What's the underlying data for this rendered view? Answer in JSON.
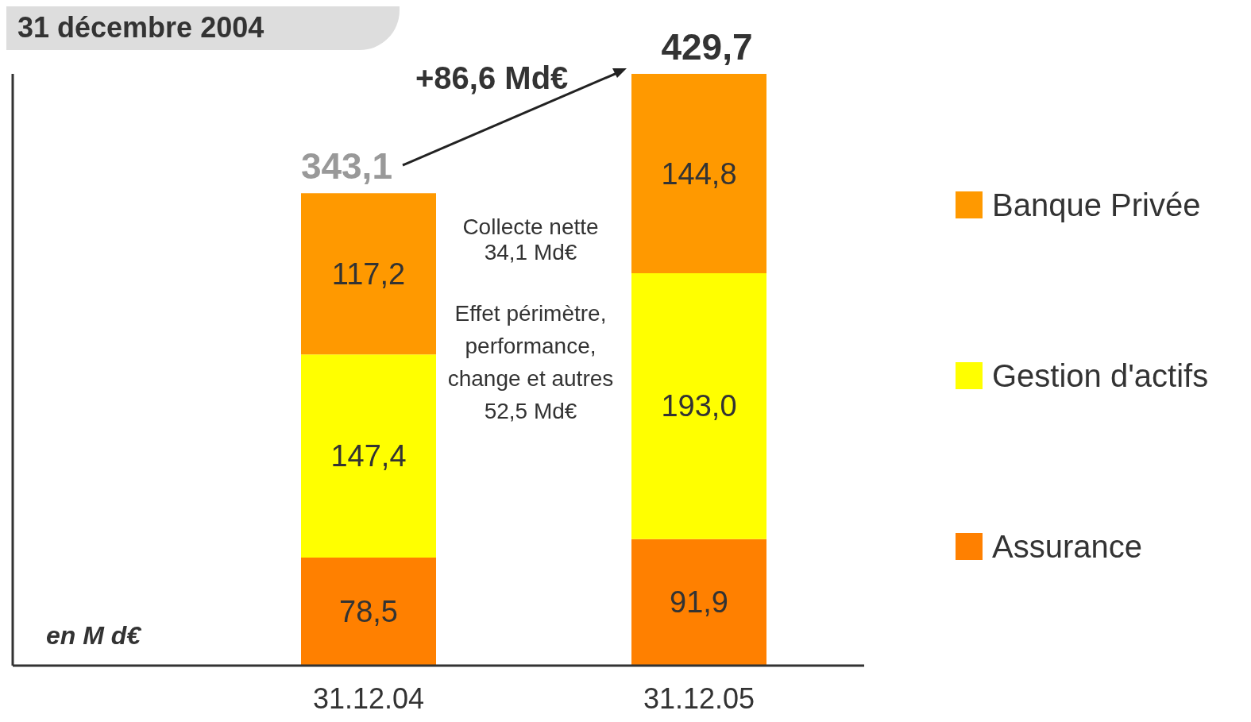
{
  "chart_data": {
    "type": "bar",
    "title": "31 décembre 2004",
    "stacked": true,
    "categories": [
      "31.12.04",
      "31.12.05"
    ],
    "series": [
      {
        "name": "Assurance",
        "color": "#ff8000",
        "values": [
          78.5,
          91.9
        ],
        "value_labels": [
          "78,5",
          "91,9"
        ]
      },
      {
        "name": "Gestion d'actifs",
        "color": "#ffff00",
        "values": [
          147.4,
          193.0
        ],
        "value_labels": [
          "147,4",
          "193,0"
        ]
      },
      {
        "name": "Banque Privée",
        "color": "#ff9900",
        "values": [
          117.2,
          144.8
        ],
        "value_labels": [
          "117,2",
          "144,8"
        ]
      }
    ],
    "totals": [
      "343,1",
      "429,7"
    ],
    "annotations": [
      "+86,6 Md€",
      "Collecte nette\n34,1 Md€",
      "Effet périmètre,\nperformance,\nchange et autres\n52,5 Md€",
      "en M d€"
    ],
    "legend": "right"
  }
}
